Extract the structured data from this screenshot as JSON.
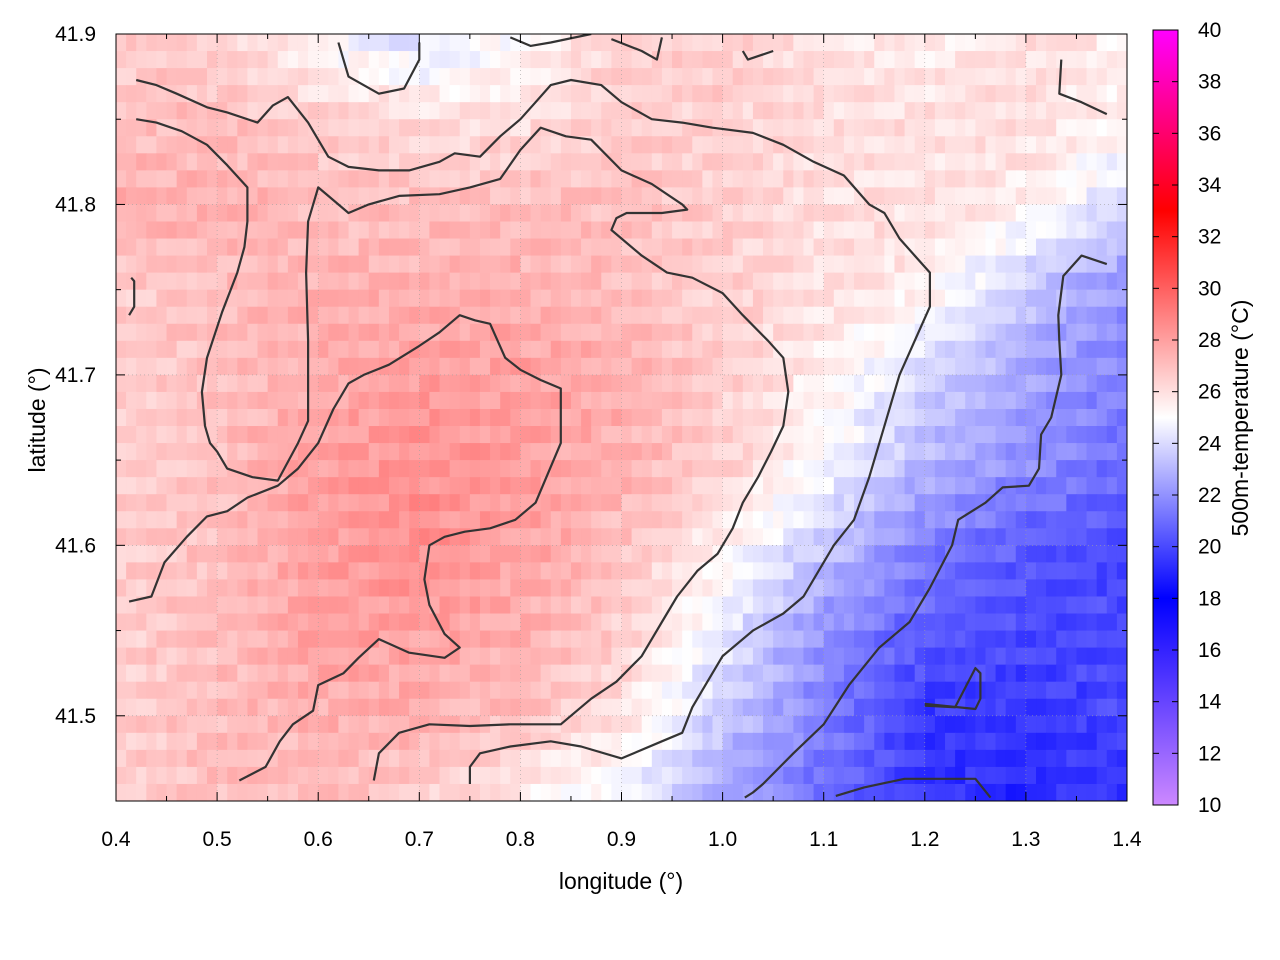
{
  "chart_data": {
    "type": "heatmap",
    "title": "",
    "xlabel": "longitude (°)",
    "ylabel": "latitude (°)",
    "colorbar_label": "500m-temperature (°C)",
    "xlim": [
      0.4,
      1.4
    ],
    "ylim": [
      41.45,
      41.9
    ],
    "xticks": [
      "0.4",
      "0.5",
      "0.6",
      "0.7",
      "0.8",
      "0.9",
      "1.0",
      "1.1",
      "1.2",
      "1.3",
      "1.4"
    ],
    "yticks": [
      "41.5",
      "41.6",
      "41.7",
      "41.8",
      "41.9"
    ],
    "color_range": [
      10,
      40
    ],
    "colorbar_ticks": [
      "10",
      "12",
      "14",
      "16",
      "18",
      "20",
      "22",
      "24",
      "26",
      "28",
      "30",
      "32",
      "34",
      "36",
      "38",
      "40"
    ],
    "colormap_stops": [
      {
        "value": 10,
        "color": "#cc88ff"
      },
      {
        "value": 18,
        "color": "#0000ff"
      },
      {
        "value": 25,
        "color": "#ffffff"
      },
      {
        "value": 33,
        "color": "#ff0000"
      },
      {
        "value": 40,
        "color": "#ff00ff"
      }
    ],
    "grid": true,
    "contour_levels": [
      24,
      26,
      28
    ],
    "temperature_field": {
      "x": [
        0.4,
        0.5,
        0.6,
        0.7,
        0.8,
        0.9,
        1.0,
        1.1,
        1.2,
        1.3,
        1.4
      ],
      "y": [
        41.9,
        41.85,
        41.8,
        41.75,
        41.7,
        41.65,
        41.6,
        41.55,
        41.5,
        41.45
      ],
      "values": [
        [
          26.5,
          26.5,
          25.0,
          24.0,
          25.0,
          26.5,
          26.5,
          26.0,
          25.5,
          26.0,
          25.5
        ],
        [
          27.0,
          27.0,
          26.5,
          26.0,
          26.0,
          26.5,
          26.5,
          26.0,
          26.0,
          26.0,
          25.5
        ],
        [
          27.5,
          27.5,
          27.0,
          27.0,
          27.0,
          27.0,
          26.5,
          26.0,
          26.0,
          25.5,
          24.0
        ],
        [
          26.5,
          27.0,
          27.5,
          27.5,
          27.5,
          27.0,
          26.5,
          26.0,
          25.5,
          23.5,
          22.0
        ],
        [
          26.5,
          27.0,
          27.5,
          28.0,
          28.0,
          27.5,
          26.5,
          25.5,
          24.0,
          22.5,
          21.5
        ],
        [
          26.5,
          27.0,
          28.0,
          28.5,
          28.0,
          27.5,
          26.5,
          25.0,
          23.0,
          22.0,
          21.0
        ],
        [
          26.5,
          27.0,
          28.0,
          28.5,
          28.0,
          27.0,
          25.5,
          23.5,
          21.5,
          20.5,
          20.0
        ],
        [
          26.5,
          27.0,
          28.0,
          28.0,
          27.5,
          26.5,
          24.5,
          22.0,
          20.5,
          20.0,
          20.0
        ],
        [
          26.5,
          27.0,
          27.5,
          27.5,
          27.0,
          26.0,
          23.5,
          21.5,
          19.5,
          19.5,
          20.0
        ],
        [
          26.5,
          27.0,
          27.0,
          26.5,
          25.5,
          24.5,
          22.5,
          21.0,
          19.5,
          19.0,
          19.5
        ]
      ]
    },
    "contours": [
      {
        "name": "contour-24-north-left",
        "level": 24,
        "points": [
          [
            0.62,
            41.895
          ],
          [
            0.63,
            41.875
          ],
          [
            0.66,
            41.865
          ],
          [
            0.685,
            41.868
          ],
          [
            0.7,
            41.885
          ],
          [
            0.7,
            41.895
          ]
        ]
      },
      {
        "name": "contour-24-north-mid",
        "level": 24,
        "points": [
          [
            0.79,
            41.898
          ],
          [
            0.81,
            41.893
          ],
          [
            0.83,
            41.895
          ],
          [
            0.87,
            41.9
          ]
        ]
      },
      {
        "name": "contour-24-north-right",
        "level": 24,
        "points": [
          [
            0.89,
            41.897
          ],
          [
            0.92,
            41.89
          ],
          [
            0.935,
            41.885
          ],
          [
            0.94,
            41.898
          ]
        ]
      },
      {
        "name": "contour-24-north-small",
        "level": 24,
        "points": [
          [
            1.02,
            41.89
          ],
          [
            1.025,
            41.885
          ],
          [
            1.05,
            41.89
          ]
        ]
      },
      {
        "name": "contour-24-ne-corner",
        "level": 24,
        "points": [
          [
            1.335,
            41.885
          ],
          [
            1.333,
            41.865
          ],
          [
            1.355,
            41.86
          ],
          [
            1.38,
            41.853
          ]
        ]
      },
      {
        "name": "contour-24-east-band",
        "level": 24,
        "points": [
          [
            1.38,
            41.765
          ],
          [
            1.355,
            41.77
          ],
          [
            1.337,
            41.758
          ],
          [
            1.332,
            41.735
          ],
          [
            1.333,
            41.72
          ],
          [
            1.335,
            41.7
          ],
          [
            1.325,
            41.675
          ],
          [
            1.315,
            41.665
          ],
          [
            1.313,
            41.645
          ],
          [
            1.303,
            41.635
          ],
          [
            1.277,
            41.634
          ],
          [
            1.26,
            41.625
          ],
          [
            1.233,
            41.615
          ],
          [
            1.227,
            41.6
          ],
          [
            1.205,
            41.575
          ],
          [
            1.185,
            41.555
          ],
          [
            1.155,
            41.54
          ],
          [
            1.125,
            41.518
          ],
          [
            1.1,
            41.495
          ],
          [
            1.07,
            41.478
          ],
          [
            1.04,
            41.46
          ],
          [
            1.03,
            41.455
          ],
          [
            1.022,
            41.452
          ]
        ]
      },
      {
        "name": "contour-24-se-bottom",
        "level": 24,
        "points": [
          [
            1.112,
            41.453
          ],
          [
            1.14,
            41.458
          ],
          [
            1.18,
            41.463
          ],
          [
            1.21,
            41.463
          ],
          [
            1.25,
            41.463
          ],
          [
            1.265,
            41.452
          ]
        ]
      },
      {
        "name": "contour-24-se-loop",
        "level": 24,
        "points": [
          [
            1.2,
            41.507
          ],
          [
            1.25,
            41.504
          ],
          [
            1.255,
            41.51
          ],
          [
            1.255,
            41.525
          ],
          [
            1.25,
            41.528
          ],
          [
            1.23,
            41.505
          ],
          [
            1.2,
            41.506
          ]
        ]
      },
      {
        "name": "contour-26-main",
        "level": 26,
        "points": [
          [
            0.42,
            41.873
          ],
          [
            0.44,
            41.87
          ],
          [
            0.46,
            41.865
          ],
          [
            0.49,
            41.857
          ],
          [
            0.51,
            41.854
          ],
          [
            0.54,
            41.848
          ],
          [
            0.555,
            41.858
          ],
          [
            0.57,
            41.863
          ],
          [
            0.59,
            41.848
          ],
          [
            0.61,
            41.828
          ],
          [
            0.63,
            41.822
          ],
          [
            0.66,
            41.82
          ],
          [
            0.69,
            41.82
          ],
          [
            0.72,
            41.825
          ],
          [
            0.735,
            41.83
          ],
          [
            0.76,
            41.828
          ],
          [
            0.78,
            41.84
          ],
          [
            0.8,
            41.85
          ],
          [
            0.815,
            41.86
          ],
          [
            0.83,
            41.87
          ],
          [
            0.85,
            41.873
          ],
          [
            0.88,
            41.87
          ],
          [
            0.9,
            41.86
          ],
          [
            0.93,
            41.85
          ],
          [
            0.96,
            41.848
          ],
          [
            0.99,
            41.845
          ],
          [
            1.03,
            41.842
          ],
          [
            1.06,
            41.835
          ],
          [
            1.09,
            41.825
          ],
          [
            1.12,
            41.817
          ],
          [
            1.145,
            41.8
          ],
          [
            1.16,
            41.795
          ],
          [
            1.175,
            41.78
          ],
          [
            1.19,
            41.77
          ],
          [
            1.205,
            41.76
          ],
          [
            1.205,
            41.74
          ],
          [
            1.19,
            41.72
          ],
          [
            1.175,
            41.7
          ],
          [
            1.16,
            41.67
          ],
          [
            1.145,
            41.64
          ],
          [
            1.13,
            41.615
          ],
          [
            1.11,
            41.6
          ],
          [
            1.095,
            41.585
          ],
          [
            1.08,
            41.57
          ],
          [
            1.06,
            41.56
          ],
          [
            1.03,
            41.55
          ],
          [
            1.0,
            41.535
          ],
          [
            0.985,
            41.52
          ],
          [
            0.97,
            41.505
          ],
          [
            0.96,
            41.49
          ],
          [
            0.94,
            41.485
          ],
          [
            0.9,
            41.475
          ],
          [
            0.86,
            41.482
          ],
          [
            0.83,
            41.485
          ],
          [
            0.79,
            41.482
          ],
          [
            0.76,
            41.478
          ],
          [
            0.75,
            41.47
          ],
          [
            0.75,
            41.46
          ]
        ]
      },
      {
        "name": "contour-26-west-edge",
        "level": 26,
        "points": [
          [
            0.415,
            41.757
          ],
          [
            0.418,
            41.755
          ],
          [
            0.418,
            41.74
          ],
          [
            0.413,
            41.735
          ]
        ]
      },
      {
        "name": "contour-28-west",
        "level": 28,
        "points": [
          [
            0.42,
            41.85
          ],
          [
            0.44,
            41.848
          ],
          [
            0.465,
            41.843
          ],
          [
            0.49,
            41.835
          ],
          [
            0.51,
            41.823
          ],
          [
            0.53,
            41.81
          ],
          [
            0.53,
            41.79
          ],
          [
            0.527,
            41.775
          ],
          [
            0.52,
            41.76
          ],
          [
            0.505,
            41.737
          ],
          [
            0.49,
            41.71
          ],
          [
            0.485,
            41.69
          ],
          [
            0.488,
            41.67
          ],
          [
            0.493,
            41.66
          ],
          [
            0.5,
            41.655
          ],
          [
            0.51,
            41.645
          ],
          [
            0.535,
            41.64
          ],
          [
            0.56,
            41.638
          ],
          [
            0.58,
            41.66
          ],
          [
            0.59,
            41.673
          ],
          [
            0.59,
            41.72
          ],
          [
            0.588,
            41.76
          ],
          [
            0.59,
            41.79
          ],
          [
            0.6,
            41.81
          ],
          [
            0.61,
            41.805
          ],
          [
            0.63,
            41.795
          ],
          [
            0.65,
            41.8
          ],
          [
            0.68,
            41.805
          ],
          [
            0.72,
            41.806
          ],
          [
            0.75,
            41.81
          ],
          [
            0.78,
            41.815
          ],
          [
            0.8,
            41.832
          ],
          [
            0.82,
            41.845
          ],
          [
            0.845,
            41.84
          ],
          [
            0.87,
            41.838
          ],
          [
            0.9,
            41.82
          ],
          [
            0.93,
            41.812
          ],
          [
            0.96,
            41.8
          ],
          [
            0.965,
            41.797
          ],
          [
            0.94,
            41.795
          ],
          [
            0.905,
            41.795
          ],
          [
            0.895,
            41.792
          ],
          [
            0.89,
            41.785
          ],
          [
            0.92,
            41.77
          ],
          [
            0.945,
            41.76
          ],
          [
            0.97,
            41.757
          ],
          [
            1.0,
            41.748
          ],
          [
            1.02,
            41.735
          ],
          [
            1.045,
            41.72
          ],
          [
            1.06,
            41.71
          ],
          [
            1.065,
            41.69
          ],
          [
            1.06,
            41.67
          ],
          [
            1.048,
            41.655
          ],
          [
            1.035,
            41.64
          ],
          [
            1.02,
            41.625
          ],
          [
            1.01,
            41.61
          ],
          [
            0.995,
            41.595
          ],
          [
            0.975,
            41.585
          ],
          [
            0.955,
            41.57
          ],
          [
            0.94,
            41.555
          ],
          [
            0.92,
            41.535
          ],
          [
            0.895,
            41.52
          ],
          [
            0.87,
            41.51
          ],
          [
            0.84,
            41.495
          ],
          [
            0.79,
            41.495
          ],
          [
            0.75,
            41.494
          ],
          [
            0.71,
            41.495
          ],
          [
            0.68,
            41.49
          ],
          [
            0.66,
            41.478
          ],
          [
            0.655,
            41.462
          ]
        ]
      },
      {
        "name": "contour-28-southwest",
        "level": 28,
        "points": [
          [
            0.413,
            41.567
          ],
          [
            0.435,
            41.57
          ],
          [
            0.448,
            41.59
          ],
          [
            0.47,
            41.605
          ],
          [
            0.49,
            41.617
          ],
          [
            0.51,
            41.62
          ],
          [
            0.53,
            41.628
          ],
          [
            0.56,
            41.635
          ],
          [
            0.58,
            41.645
          ],
          [
            0.6,
            41.66
          ],
          [
            0.615,
            41.68
          ],
          [
            0.63,
            41.695
          ],
          [
            0.645,
            41.7
          ],
          [
            0.67,
            41.706
          ],
          [
            0.7,
            41.717
          ],
          [
            0.72,
            41.725
          ],
          [
            0.74,
            41.735
          ],
          [
            0.755,
            41.732
          ],
          [
            0.77,
            41.73
          ],
          [
            0.785,
            41.71
          ],
          [
            0.8,
            41.703
          ],
          [
            0.82,
            41.697
          ],
          [
            0.84,
            41.692
          ],
          [
            0.84,
            41.66
          ],
          [
            0.815,
            41.625
          ],
          [
            0.795,
            41.615
          ],
          [
            0.77,
            41.61
          ],
          [
            0.745,
            41.608
          ],
          [
            0.725,
            41.605
          ],
          [
            0.71,
            41.6
          ],
          [
            0.705,
            41.58
          ],
          [
            0.71,
            41.565
          ],
          [
            0.725,
            41.548
          ],
          [
            0.74,
            41.54
          ],
          [
            0.725,
            41.534
          ],
          [
            0.69,
            41.537
          ],
          [
            0.66,
            41.545
          ],
          [
            0.64,
            41.534
          ],
          [
            0.625,
            41.525
          ],
          [
            0.6,
            41.518
          ],
          [
            0.595,
            41.503
          ],
          [
            0.575,
            41.495
          ],
          [
            0.562,
            41.485
          ],
          [
            0.548,
            41.47
          ],
          [
            0.522,
            41.462
          ]
        ]
      }
    ]
  }
}
